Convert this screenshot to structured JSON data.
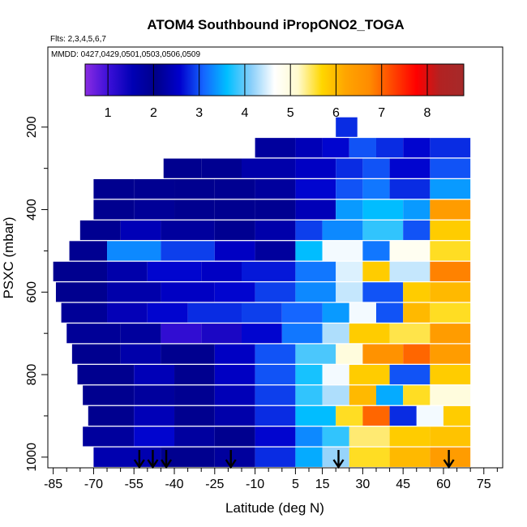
{
  "chart_data": {
    "type": "heatmap",
    "title": "ATOM4 Southbound iPropONO2_TOGA",
    "flights_note": "Flts: 2,3,4,5,6,7",
    "dates_note": "MMDD: 0427,0429,0501,0503,0506,0509",
    "xlabel": "Latitude (deg N)",
    "ylabel": "PSXC (mbar)",
    "xlim": [
      -87,
      82
    ],
    "ylim": [
      1020,
      0
    ],
    "x_ticks": [
      -85,
      -70,
      -55,
      -40,
      -25,
      -10,
      5,
      15,
      30,
      45,
      60,
      75
    ],
    "x_minor_ticks": [
      -80,
      -75,
      -65,
      -60,
      -50,
      -45,
      -35,
      -30,
      -20,
      -15,
      -5,
      0,
      10,
      20,
      25,
      35,
      40,
      50,
      55,
      65,
      70,
      80
    ],
    "y_ticks": [
      200,
      400,
      600,
      800,
      1000
    ],
    "y_minor_ticks": [
      300,
      500,
      700,
      900
    ],
    "colorbar": {
      "min": 0.5,
      "max": 8.8,
      "ticks": [
        1,
        2,
        3,
        4,
        5,
        6,
        7,
        8
      ],
      "colors": [
        "#8a2be2",
        "#3a0fd8",
        "#0000b4",
        "#00008b",
        "#0000cd",
        "#1565ff",
        "#00bfff",
        "#87cefa",
        "#ffffff",
        "#fffacd",
        "#ffd700",
        "#ffa500",
        "#ff8c00",
        "#ff4500",
        "#ff0000",
        "#b22222",
        "#a52a2a"
      ]
    },
    "layers": [
      {
        "p": 1000,
        "segments": [
          [
            -70,
            -45,
            1.6
          ],
          [
            -45,
            -25,
            2.0
          ],
          [
            -25,
            -10,
            2.2
          ],
          [
            -10,
            5,
            2.8
          ],
          [
            5,
            15,
            3.5
          ],
          [
            15,
            25,
            4.2
          ],
          [
            25,
            40,
            5.6
          ],
          [
            40,
            55,
            6.0
          ],
          [
            55,
            70,
            6.4
          ]
        ]
      },
      {
        "p": 950,
        "segments": [
          [
            -74,
            -55,
            2.2
          ],
          [
            -55,
            -40,
            2.6
          ],
          [
            -40,
            -25,
            1.8
          ],
          [
            -25,
            -10,
            2.0
          ],
          [
            -10,
            5,
            2.6
          ],
          [
            5,
            15,
            3.3
          ],
          [
            15,
            25,
            3.8
          ],
          [
            25,
            40,
            5.4
          ],
          [
            40,
            55,
            5.8
          ],
          [
            55,
            70,
            5.9
          ]
        ]
      },
      {
        "p": 900,
        "segments": [
          [
            -72,
            -55,
            2.0
          ],
          [
            -55,
            -40,
            2.4
          ],
          [
            -40,
            -25,
            2.0
          ],
          [
            -25,
            -10,
            2.3
          ],
          [
            -10,
            5,
            2.8
          ],
          [
            5,
            20,
            3.6
          ],
          [
            20,
            30,
            5.6
          ],
          [
            30,
            40,
            7.0
          ],
          [
            40,
            50,
            2.8
          ],
          [
            50,
            60,
            4.6
          ],
          [
            60,
            70,
            5.8
          ]
        ]
      },
      {
        "p": 850,
        "segments": [
          [
            -74,
            -55,
            2.0
          ],
          [
            -55,
            -40,
            2.2
          ],
          [
            -40,
            -25,
            2.1
          ],
          [
            -25,
            -10,
            2.4
          ],
          [
            -10,
            5,
            2.9
          ],
          [
            5,
            15,
            3.8
          ],
          [
            15,
            25,
            4.3
          ],
          [
            25,
            35,
            6.0
          ],
          [
            35,
            45,
            3.5
          ],
          [
            45,
            55,
            5.6
          ],
          [
            55,
            70,
            5.0
          ]
        ]
      },
      {
        "p": 800,
        "segments": [
          [
            -76,
            -55,
            2.0
          ],
          [
            -55,
            -40,
            2.4
          ],
          [
            -40,
            -25,
            2.0
          ],
          [
            -25,
            -10,
            2.5
          ],
          [
            -10,
            5,
            3.0
          ],
          [
            5,
            15,
            3.7
          ],
          [
            15,
            25,
            4.6
          ],
          [
            25,
            40,
            5.8
          ],
          [
            40,
            55,
            3.0
          ],
          [
            55,
            70,
            5.8
          ]
        ]
      },
      {
        "p": 750,
        "segments": [
          [
            -78,
            -60,
            2.0
          ],
          [
            -60,
            -45,
            2.3
          ],
          [
            -45,
            -25,
            2.0
          ],
          [
            -25,
            -10,
            2.5
          ],
          [
            -10,
            5,
            3.0
          ],
          [
            5,
            20,
            3.9
          ],
          [
            20,
            30,
            5.0
          ],
          [
            30,
            45,
            6.6
          ],
          [
            45,
            55,
            7.0
          ],
          [
            55,
            70,
            6.4
          ]
        ]
      },
      {
        "p": 700,
        "segments": [
          [
            -80,
            -60,
            1.9
          ],
          [
            -60,
            -45,
            2.2
          ],
          [
            -45,
            -30,
            1.1
          ],
          [
            -30,
            -15,
            1.3
          ],
          [
            -15,
            0,
            2.6
          ],
          [
            0,
            15,
            3.2
          ],
          [
            15,
            25,
            4.3
          ],
          [
            25,
            40,
            5.8
          ],
          [
            40,
            55,
            5.5
          ],
          [
            55,
            70,
            6.4
          ]
        ]
      },
      {
        "p": 650,
        "segments": [
          [
            -82,
            -65,
            1.9
          ],
          [
            -65,
            -50,
            1.5
          ],
          [
            -50,
            -35,
            2.6
          ],
          [
            -35,
            -15,
            2.8
          ],
          [
            -15,
            0,
            2.9
          ],
          [
            0,
            15,
            3.1
          ],
          [
            15,
            25,
            3.4
          ],
          [
            25,
            35,
            4.6
          ],
          [
            35,
            45,
            3.0
          ],
          [
            45,
            55,
            6.0
          ],
          [
            55,
            70,
            5.6
          ]
        ]
      },
      {
        "p": 600,
        "segments": [
          [
            -84,
            -65,
            2.0
          ],
          [
            -65,
            -45,
            2.3
          ],
          [
            -45,
            -25,
            2.5
          ],
          [
            -25,
            -10,
            2.6
          ],
          [
            -10,
            5,
            2.9
          ],
          [
            5,
            20,
            3.3
          ],
          [
            20,
            30,
            4.4
          ],
          [
            30,
            45,
            3.0
          ],
          [
            45,
            55,
            5.8
          ],
          [
            55,
            70,
            6.0
          ]
        ]
      },
      {
        "p": 550,
        "segments": [
          [
            -85,
            -65,
            2.0
          ],
          [
            -65,
            -50,
            2.3
          ],
          [
            -50,
            -30,
            2.6
          ],
          [
            -30,
            -15,
            2.5
          ],
          [
            -15,
            5,
            2.7
          ],
          [
            5,
            20,
            3.2
          ],
          [
            20,
            30,
            4.5
          ],
          [
            30,
            40,
            5.8
          ],
          [
            40,
            55,
            4.4
          ],
          [
            55,
            70,
            6.8
          ]
        ]
      },
      {
        "p": 500,
        "segments": [
          [
            -79,
            -65,
            2.1
          ],
          [
            -65,
            -45,
            3.3
          ],
          [
            -45,
            -25,
            2.9
          ],
          [
            -25,
            -10,
            2.5
          ],
          [
            -10,
            5,
            2.2
          ],
          [
            5,
            15,
            3.6
          ],
          [
            15,
            30,
            4.6
          ],
          [
            30,
            40,
            3.2
          ],
          [
            40,
            55,
            4.8
          ],
          [
            55,
            70,
            5.6
          ]
        ]
      },
      {
        "p": 450,
        "segments": [
          [
            -75,
            -60,
            2.1
          ],
          [
            -60,
            -45,
            2.4
          ],
          [
            -45,
            -25,
            2.2
          ],
          [
            -25,
            -10,
            2.1
          ],
          [
            -10,
            5,
            2.3
          ],
          [
            5,
            15,
            2.9
          ],
          [
            15,
            30,
            3.3
          ],
          [
            30,
            45,
            3.8
          ],
          [
            45,
            55,
            3.0
          ],
          [
            55,
            70,
            5.8
          ]
        ]
      },
      {
        "p": 400,
        "segments": [
          [
            -70,
            -55,
            2.0
          ],
          [
            -55,
            -40,
            1.9
          ],
          [
            -40,
            -25,
            2.0
          ],
          [
            -25,
            -10,
            2.0
          ],
          [
            -10,
            5,
            2.1
          ],
          [
            5,
            20,
            2.4
          ],
          [
            20,
            30,
            3.4
          ],
          [
            30,
            45,
            3.6
          ],
          [
            45,
            55,
            3.4
          ],
          [
            55,
            70,
            6.4
          ]
        ]
      },
      {
        "p": 350,
        "segments": [
          [
            -70,
            -55,
            2.0
          ],
          [
            -55,
            -40,
            2.1
          ],
          [
            -40,
            -25,
            2.0
          ],
          [
            -25,
            -10,
            2.1
          ],
          [
            -10,
            5,
            2.2
          ],
          [
            5,
            20,
            2.6
          ],
          [
            20,
            30,
            3.0
          ],
          [
            30,
            40,
            3.2
          ],
          [
            40,
            55,
            2.8
          ],
          [
            55,
            70,
            3.4
          ]
        ]
      },
      {
        "p": 300,
        "segments": [
          [
            -44,
            -30,
            2.0
          ],
          [
            -30,
            -15,
            2.1
          ],
          [
            -15,
            5,
            2.3
          ],
          [
            5,
            20,
            2.5
          ],
          [
            20,
            30,
            2.8
          ],
          [
            30,
            40,
            3.0
          ],
          [
            40,
            55,
            2.6
          ],
          [
            55,
            70,
            3.0
          ]
        ]
      },
      {
        "p": 250,
        "segments": [
          [
            -10,
            5,
            2.2
          ],
          [
            5,
            15,
            2.4
          ],
          [
            15,
            25,
            2.6
          ],
          [
            25,
            35,
            3.0
          ],
          [
            35,
            45,
            2.8
          ],
          [
            45,
            55,
            2.6
          ],
          [
            55,
            70,
            2.8
          ]
        ]
      },
      {
        "p": 200,
        "segments": [
          [
            20,
            28,
            2.8
          ]
        ]
      }
    ],
    "marker_latitudes": [
      -53,
      -48,
      -43,
      -19,
      21,
      62
    ]
  }
}
